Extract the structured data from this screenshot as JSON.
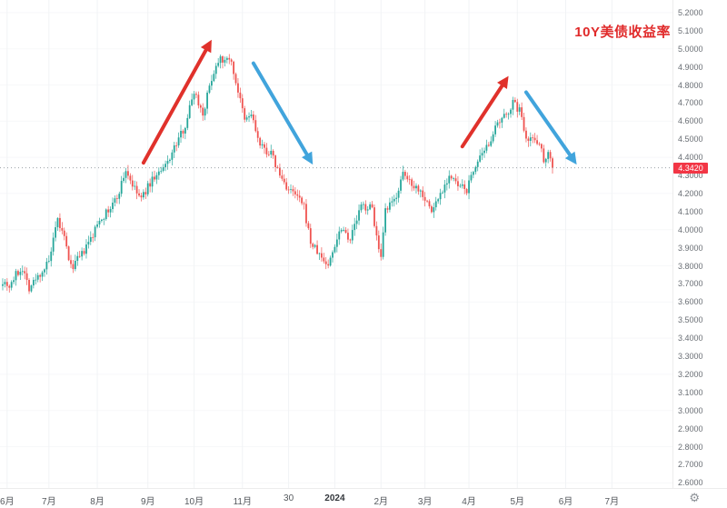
{
  "chart_data": {
    "type": "candlestick",
    "title": "10Y美债收益率",
    "title_color": "#e02a2a",
    "last_price": 4.342,
    "last_price_label": "4.3420",
    "badge_color": "#f23645",
    "up_color": "#26a69a",
    "down_color": "#ef5350",
    "grid": "faint",
    "legend_position": "none",
    "y_axis": {
      "min": 2.6,
      "max": 5.2,
      "step": 0.1,
      "ticks": [
        "5.2000",
        "5.1000",
        "5.0000",
        "4.9000",
        "4.8000",
        "4.7000",
        "4.6000",
        "4.5000",
        "4.4000",
        "4.3000",
        "4.2000",
        "4.1000",
        "4.0000",
        "3.9000",
        "3.8000",
        "3.7000",
        "3.6000",
        "3.5000",
        "3.4000",
        "3.3000",
        "3.2000",
        "3.1000",
        "3.0000",
        "2.9000",
        "2.8000",
        "2.7000",
        "2.6000"
      ]
    },
    "x_ticks": [
      {
        "label": "6月",
        "day": 2,
        "bold": false
      },
      {
        "label": "7月",
        "day": 21,
        "bold": false
      },
      {
        "label": "8月",
        "day": 43,
        "bold": false
      },
      {
        "label": "9月",
        "day": 66,
        "bold": false
      },
      {
        "label": "10月",
        "day": 87,
        "bold": false
      },
      {
        "label": "11月",
        "day": 109,
        "bold": false
      },
      {
        "label": "30",
        "day": 130,
        "bold": false
      },
      {
        "label": "2024",
        "day": 151,
        "bold": true
      },
      {
        "label": "2月",
        "day": 172,
        "bold": false
      },
      {
        "label": "3月",
        "day": 192,
        "bold": false
      },
      {
        "label": "4月",
        "day": 212,
        "bold": false
      },
      {
        "label": "5月",
        "day": 234,
        "bold": false
      },
      {
        "label": "6月",
        "day": 256,
        "bold": false
      },
      {
        "label": "7月",
        "day": 277,
        "bold": false
      }
    ],
    "last_day": 250,
    "anchors": [
      [
        0,
        3.72
      ],
      [
        3,
        3.69
      ],
      [
        6,
        3.75
      ],
      [
        9,
        3.79
      ],
      [
        12,
        3.68
      ],
      [
        16,
        3.74
      ],
      [
        21,
        3.82
      ],
      [
        25,
        4.05
      ],
      [
        28,
        3.95
      ],
      [
        31,
        3.79
      ],
      [
        36,
        3.86
      ],
      [
        41,
        3.97
      ],
      [
        44,
        4.06
      ],
      [
        48,
        4.1
      ],
      [
        52,
        4.18
      ],
      [
        56,
        4.33
      ],
      [
        60,
        4.22
      ],
      [
        63,
        4.17
      ],
      [
        68,
        4.28
      ],
      [
        73,
        4.33
      ],
      [
        78,
        4.45
      ],
      [
        83,
        4.58
      ],
      [
        87,
        4.77
      ],
      [
        91,
        4.64
      ],
      [
        95,
        4.84
      ],
      [
        99,
        4.97
      ],
      [
        101,
        4.92
      ],
      [
        103,
        4.96
      ],
      [
        106,
        4.82
      ],
      [
        110,
        4.6
      ],
      [
        113,
        4.64
      ],
      [
        117,
        4.46
      ],
      [
        122,
        4.42
      ],
      [
        126,
        4.3
      ],
      [
        130,
        4.22
      ],
      [
        134,
        4.18
      ],
      [
        137,
        4.12
      ],
      [
        140,
        3.93
      ],
      [
        144,
        3.86
      ],
      [
        148,
        3.8
      ],
      [
        151,
        3.92
      ],
      [
        154,
        4.02
      ],
      [
        158,
        3.95
      ],
      [
        163,
        4.13
      ],
      [
        168,
        4.12
      ],
      [
        171,
        3.88
      ],
      [
        172,
        3.83
      ],
      [
        174,
        4.1
      ],
      [
        178,
        4.16
      ],
      [
        182,
        4.3
      ],
      [
        186,
        4.26
      ],
      [
        191,
        4.2
      ],
      [
        195,
        4.1
      ],
      [
        199,
        4.2
      ],
      [
        203,
        4.3
      ],
      [
        207,
        4.24
      ],
      [
        211,
        4.22
      ],
      [
        215,
        4.36
      ],
      [
        219,
        4.42
      ],
      [
        223,
        4.54
      ],
      [
        228,
        4.62
      ],
      [
        232,
        4.7
      ],
      [
        235,
        4.66
      ],
      [
        238,
        4.52
      ],
      [
        241,
        4.5
      ],
      [
        244,
        4.49
      ],
      [
        246,
        4.38
      ],
      [
        248,
        4.44
      ],
      [
        250,
        4.342
      ]
    ],
    "price_line": {
      "value": 4.342,
      "style": "dotted",
      "color": "#9aa0a6"
    },
    "annotations": [
      {
        "type": "arrow",
        "x1": 64,
        "y1": 4.37,
        "x2": 95,
        "y2": 5.05,
        "color": "#e0312b",
        "width": 4
      },
      {
        "type": "arrow",
        "x1": 114,
        "y1": 4.92,
        "x2": 141,
        "y2": 4.36,
        "color": "#41a4dc",
        "width": 4
      },
      {
        "type": "arrow",
        "x1": 209,
        "y1": 4.46,
        "x2": 230,
        "y2": 4.85,
        "color": "#e0312b",
        "width": 4
      },
      {
        "type": "arrow",
        "x1": 238,
        "y1": 4.76,
        "x2": 261,
        "y2": 4.36,
        "color": "#41a4dc",
        "width": 4
      }
    ]
  },
  "bottom_axis": {
    "settings_icon": "⚙"
  }
}
